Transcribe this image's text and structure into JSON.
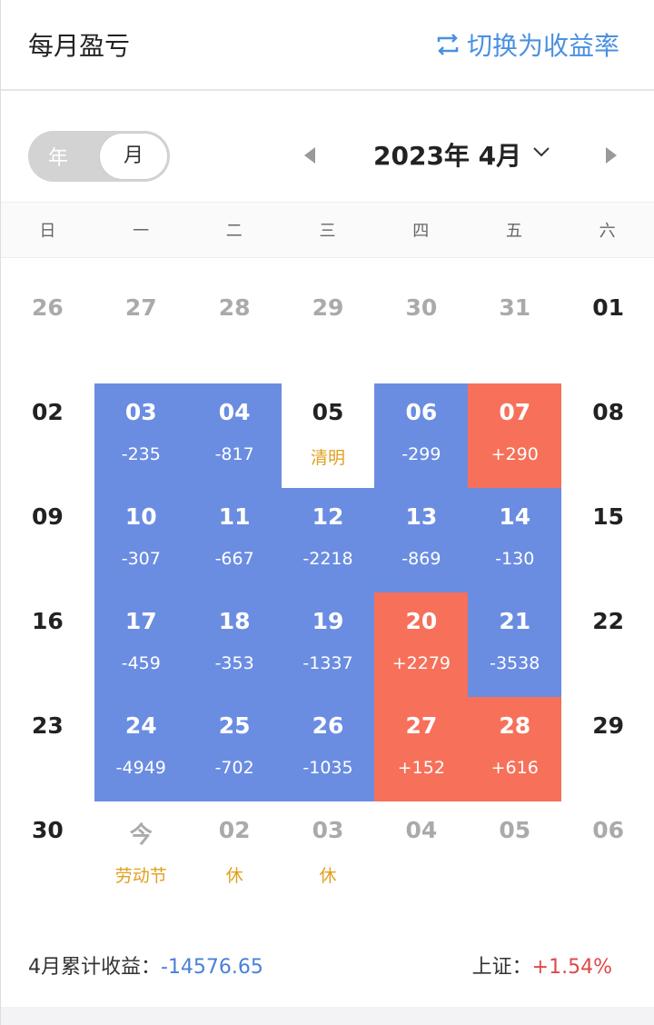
{
  "header": {
    "title": "每月盈亏",
    "switch_label": "切换为收益率",
    "switch_icon": "swap-icon"
  },
  "toggle": {
    "year": "年",
    "month": "月",
    "selected": "月"
  },
  "nav": {
    "month_label": "2023年 4月"
  },
  "weekdays": [
    "日",
    "一",
    "二",
    "三",
    "四",
    "五",
    "六"
  ],
  "colors": {
    "loss": "#6a8de2",
    "gain": "#f7705a",
    "holiday": "#e0a020"
  },
  "weeks": [
    [
      {
        "d": "26",
        "t": "muted"
      },
      {
        "d": "27",
        "t": "muted"
      },
      {
        "d": "28",
        "t": "muted"
      },
      {
        "d": "29",
        "t": "muted"
      },
      {
        "d": "30",
        "t": "muted"
      },
      {
        "d": "31",
        "t": "muted"
      },
      {
        "d": "01",
        "t": ""
      }
    ],
    [
      {
        "d": "02",
        "t": ""
      },
      {
        "d": "03",
        "t": "loss",
        "v": "-235"
      },
      {
        "d": "04",
        "t": "loss",
        "v": "-817"
      },
      {
        "d": "05",
        "t": "",
        "note": "清明"
      },
      {
        "d": "06",
        "t": "loss",
        "v": "-299"
      },
      {
        "d": "07",
        "t": "gain",
        "v": "+290"
      },
      {
        "d": "08",
        "t": ""
      }
    ],
    [
      {
        "d": "09",
        "t": ""
      },
      {
        "d": "10",
        "t": "loss",
        "v": "-307"
      },
      {
        "d": "11",
        "t": "loss",
        "v": "-667"
      },
      {
        "d": "12",
        "t": "loss",
        "v": "-2218"
      },
      {
        "d": "13",
        "t": "loss",
        "v": "-869"
      },
      {
        "d": "14",
        "t": "loss",
        "v": "-130"
      },
      {
        "d": "15",
        "t": ""
      }
    ],
    [
      {
        "d": "16",
        "t": ""
      },
      {
        "d": "17",
        "t": "loss",
        "v": "-459"
      },
      {
        "d": "18",
        "t": "loss",
        "v": "-353"
      },
      {
        "d": "19",
        "t": "loss",
        "v": "-1337"
      },
      {
        "d": "20",
        "t": "gain",
        "v": "+2279"
      },
      {
        "d": "21",
        "t": "loss",
        "v": "-3538"
      },
      {
        "d": "22",
        "t": ""
      }
    ],
    [
      {
        "d": "23",
        "t": ""
      },
      {
        "d": "24",
        "t": "loss",
        "v": "-4949"
      },
      {
        "d": "25",
        "t": "loss",
        "v": "-702"
      },
      {
        "d": "26",
        "t": "loss",
        "v": "-1035"
      },
      {
        "d": "27",
        "t": "gain",
        "v": "+152"
      },
      {
        "d": "28",
        "t": "gain",
        "v": "+616"
      },
      {
        "d": "29",
        "t": ""
      }
    ],
    [
      {
        "d": "30",
        "t": ""
      },
      {
        "d": "今",
        "t": "muted",
        "note": "劳动节"
      },
      {
        "d": "02",
        "t": "muted",
        "note": "休"
      },
      {
        "d": "03",
        "t": "muted",
        "note": "休"
      },
      {
        "d": "04",
        "t": "muted"
      },
      {
        "d": "05",
        "t": "muted"
      },
      {
        "d": "06",
        "t": "muted"
      }
    ]
  ],
  "summary": {
    "label": "4月累计收益：",
    "value": "-14576.65",
    "index_label": "上证：",
    "index_value": "+1.54%"
  }
}
